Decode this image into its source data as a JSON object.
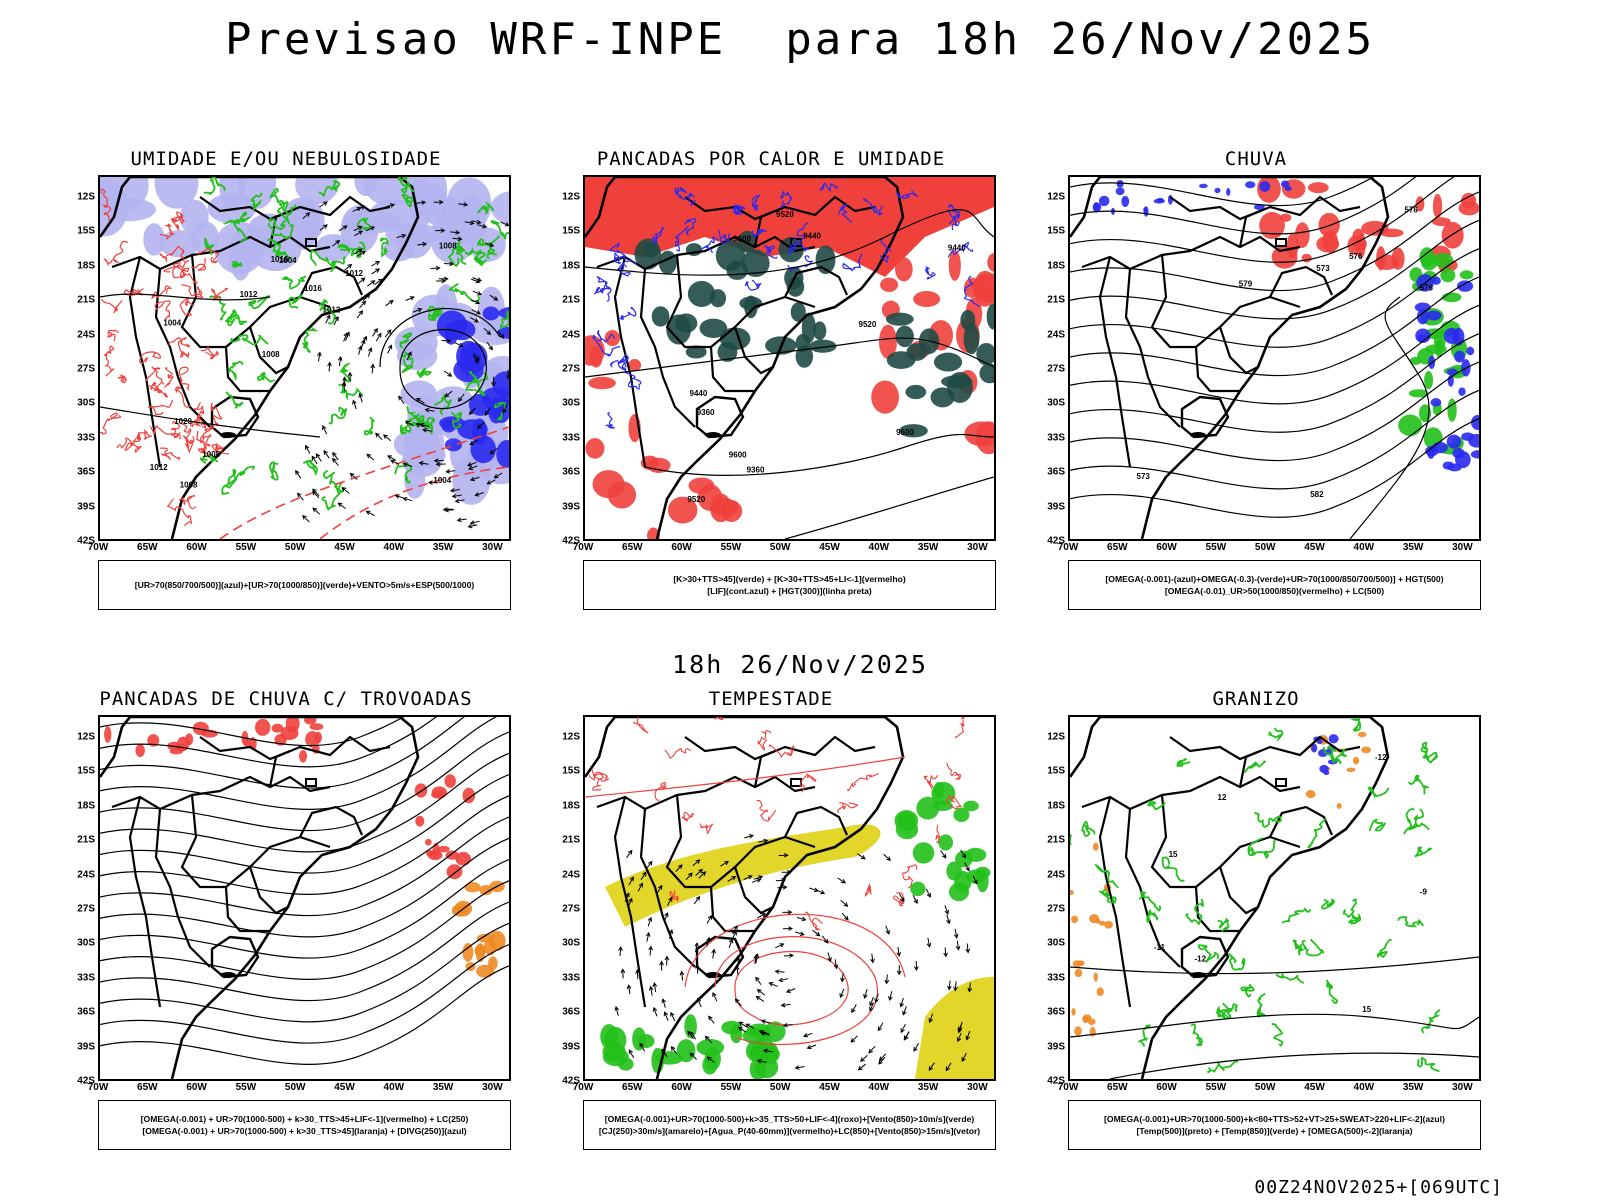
{
  "main_title": "Previsao WRF-INPE  para 18h 26/Nov/2025",
  "mid_title": "18h 26/Nov/2025",
  "footer": "00Z24NOV2025+[069UTC]",
  "lat_labels": [
    "12S",
    "15S",
    "18S",
    "21S",
    "24S",
    "27S",
    "30S",
    "33S",
    "36S",
    "39S",
    "42S"
  ],
  "lon_labels": [
    "70W",
    "65W",
    "60W",
    "55W",
    "50W",
    "45W",
    "40W",
    "35W",
    "30W"
  ],
  "colors": {
    "red": "#f0403c",
    "green": "#22c01a",
    "blue": "#2a2af0",
    "lavender": "#b4b4f0",
    "dark_teal": "#1f4a45",
    "yellow": "#e2d62a",
    "orange": "#ee8a22",
    "black": "#000000"
  },
  "panels": [
    {
      "title": "UMIDADE E/OU NEBULOSIDADE",
      "legend": [
        "[UR>70(850/700/500)](azul)+[UR>70(1000/850)](verde)+VENTO>5m/s+ESP(500/1000)"
      ],
      "icon": "pressure-contours"
    },
    {
      "title": "PANCADAS POR CALOR E UMIDADE",
      "legend": [
        "[K>30+TTS>45](verde) + [K>30+TTS>45+LI<-1](vermelho)",
        "[LIF](cont.azul) + [HGT(300)](linha preta)"
      ],
      "icon": "geopotential-contours"
    },
    {
      "title": "CHUVA",
      "legend": [
        "[OMEGA(-0.001)-(azul)+OMEGA(-0.3)-(verde)+UR>70(1000/850/700/500)] + HGT(500)",
        "[OMEGA(-0.01)_UR>50(1000/850)(vermelho) + LC(500)"
      ],
      "icon": "streamlines"
    },
    {
      "title": "PANCADAS DE CHUVA C/ TROVOADAS",
      "legend": [
        "[OMEGA(-0.001) + UR>70(1000-500) + k>30_TTS>45+LIF<-1](vermelho) + LC(250)",
        "[OMEGA(-0.001) + UR>70(1000-500) + k>30_TTS>45](laranja) + [DIVG(250)](azul)"
      ],
      "icon": "streamlines"
    },
    {
      "title": "TEMPESTADE",
      "legend": [
        "[OMEGA(-0.001)+UR>70(1000-500)+k>35_TTS>50+LIF<-4](roxo)+[Vento(850)>10m/s](verde)",
        "[CJ(250)>30m/s](amarelo)+[Agua_P(40-60mm)](vermelho)+LC(850)+[Vento(850)>15m/s](vetor)"
      ],
      "icon": "wind-vectors"
    },
    {
      "title": "GRANIZO",
      "legend": [
        "[OMEGA(-0.001)+UR>70(1000-500)+k<60+TTS>52+VT>25+SWEAT>220+LIF<-2](azul)",
        "[Temp(500)](preto) + [Temp(850)](verde) + [OMEGA(500)<-2](laranja)"
      ],
      "icon": "temperature-contours"
    }
  ],
  "contour_labels": {
    "p0": [
      "1004",
      "1004",
      "1008",
      "1008",
      "1012",
      "1008",
      "1016",
      "1016",
      "1020",
      "1012",
      "1012",
      "1008",
      "1004",
      "1012"
    ],
    "p1": [
      "9600",
      "9600",
      "9600",
      "9520",
      "9520",
      "9440",
      "9520",
      "9440",
      "9440",
      "9360",
      "9360"
    ],
    "p2": [
      "582",
      "579",
      "576",
      "576",
      "573",
      "573",
      "576"
    ],
    "p5": [
      "-12",
      "-12",
      "12",
      "15",
      "15",
      "-11",
      "-9"
    ]
  }
}
